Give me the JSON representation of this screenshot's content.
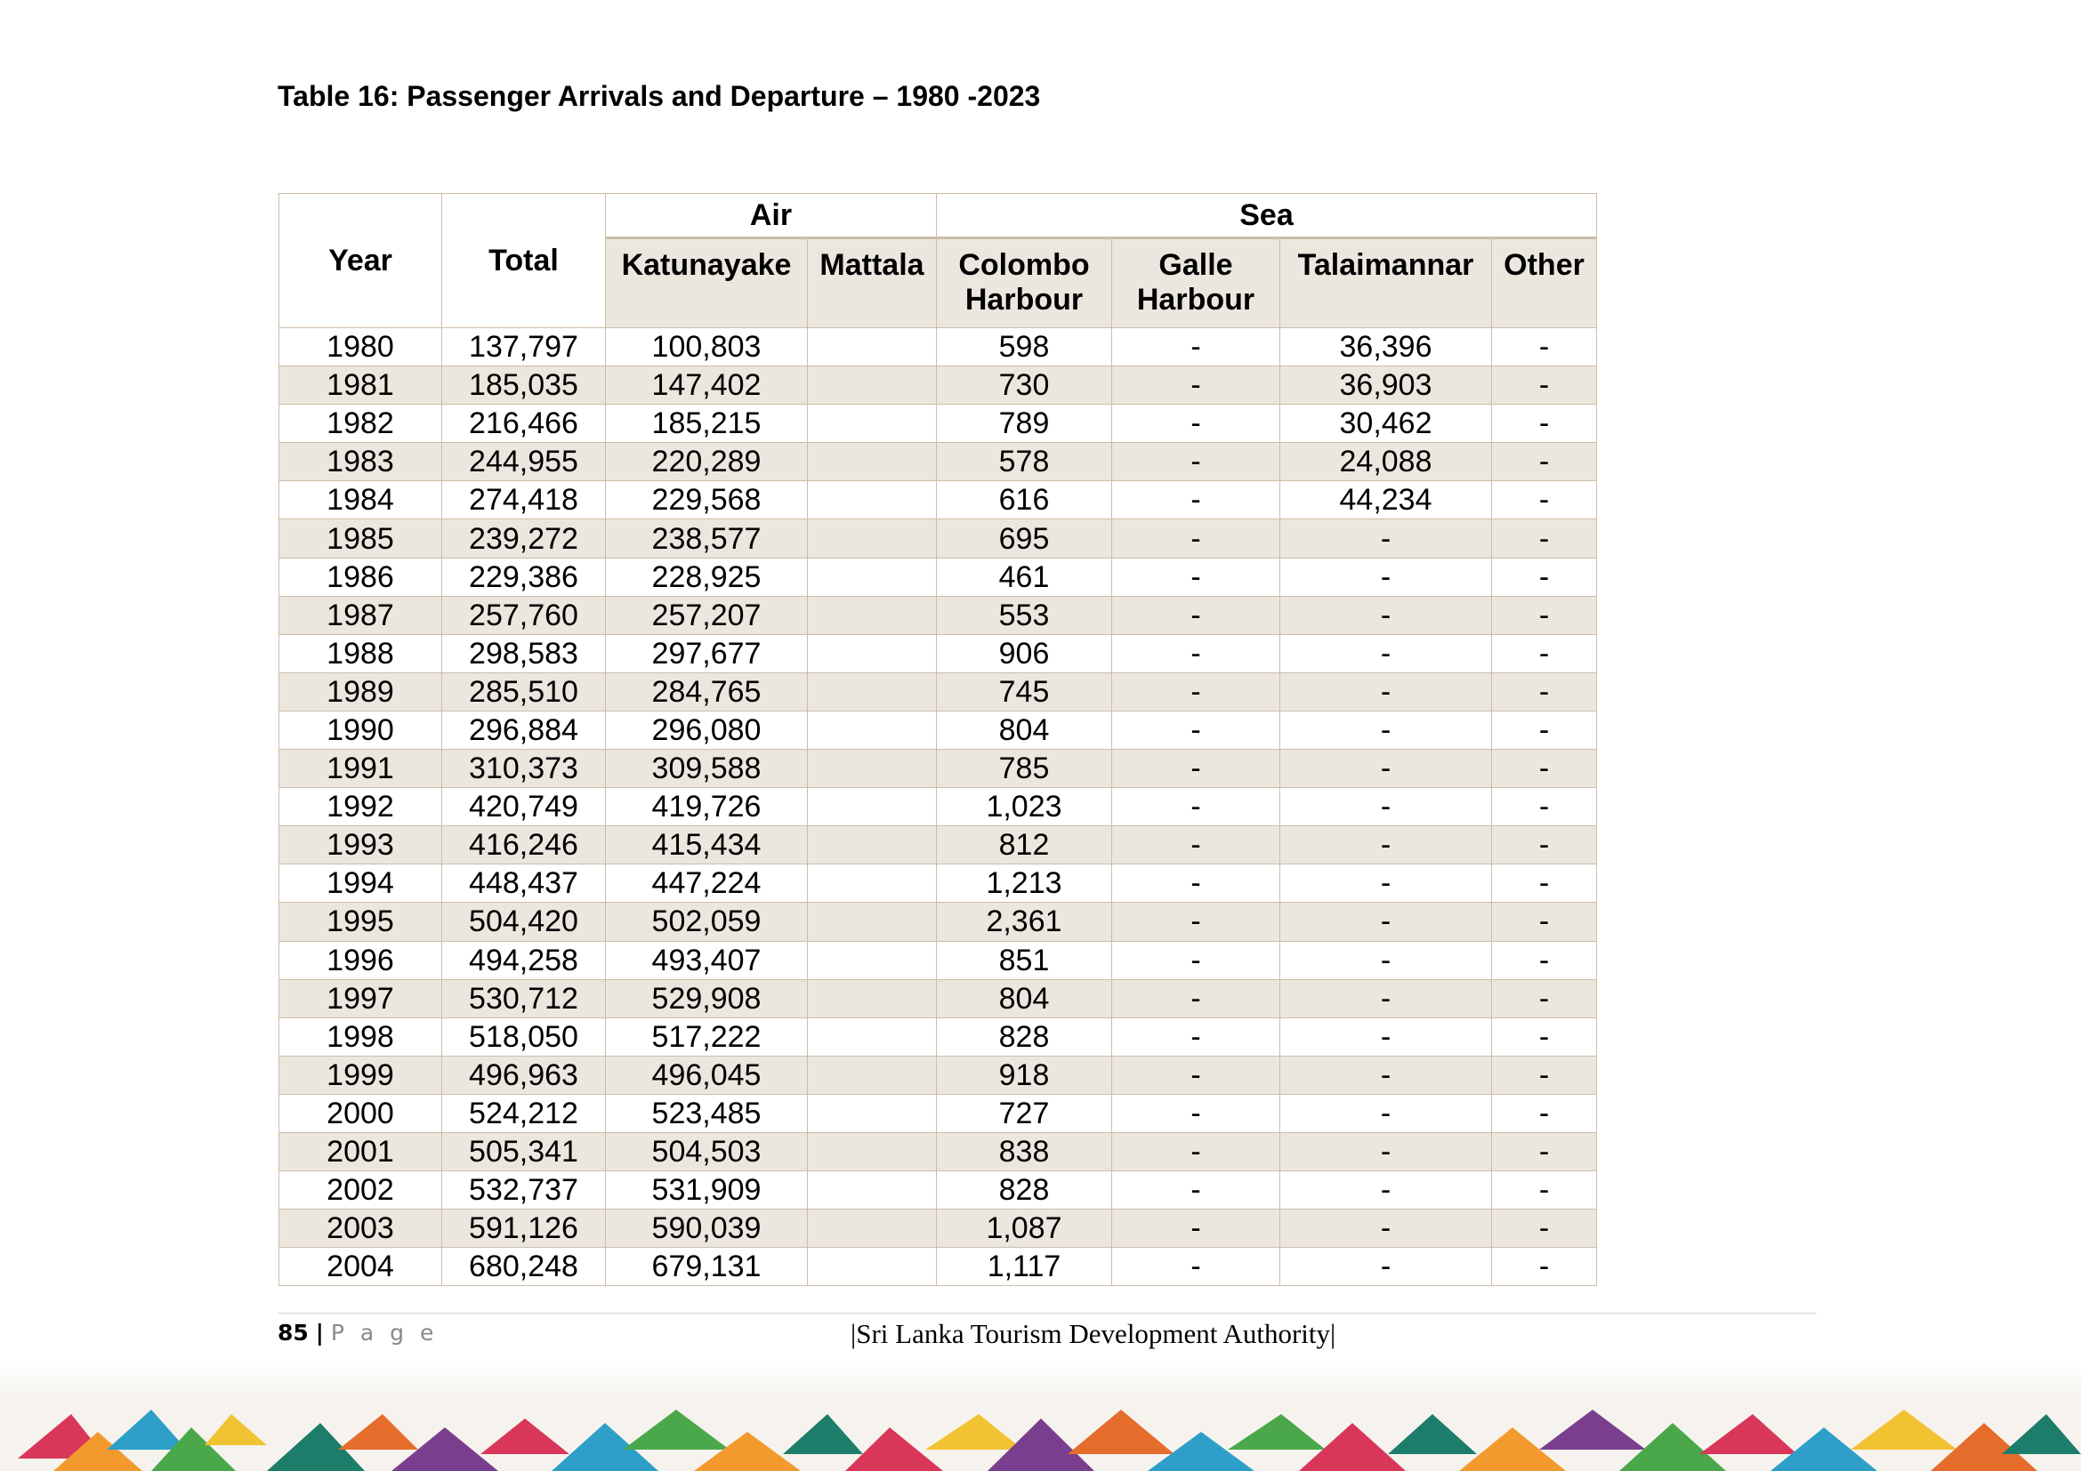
{
  "title": "Table 16: Passenger Arrivals and Departure – 1980 -2023",
  "table": {
    "headers": {
      "year": "Year",
      "total": "Total",
      "air": "Air",
      "sea": "Sea",
      "katunayake": "Katunayake",
      "mattala": "Mattala",
      "colombo_line1": "Colombo",
      "colombo_line2": "Harbour",
      "galle_line1": "Galle",
      "galle_line2": "Harbour",
      "talaimannar": "Talaimannar",
      "other": "Other"
    },
    "rows": [
      [
        "1980",
        "137,797",
        "100,803",
        "",
        "598",
        "-",
        "36,396",
        "-"
      ],
      [
        "1981",
        "185,035",
        "147,402",
        "",
        "730",
        "-",
        "36,903",
        "-"
      ],
      [
        "1982",
        "216,466",
        "185,215",
        "",
        "789",
        "-",
        "30,462",
        "-"
      ],
      [
        "1983",
        "244,955",
        "220,289",
        "",
        "578",
        "-",
        "24,088",
        "-"
      ],
      [
        "1984",
        "274,418",
        "229,568",
        "",
        "616",
        "-",
        "44,234",
        "-"
      ],
      [
        "1985",
        "239,272",
        "238,577",
        "",
        "695",
        "-",
        "-",
        "-"
      ],
      [
        "1986",
        "229,386",
        "228,925",
        "",
        "461",
        "-",
        "-",
        "-"
      ],
      [
        "1987",
        "257,760",
        "257,207",
        "",
        "553",
        "-",
        "-",
        "-"
      ],
      [
        "1988",
        "298,583",
        "297,677",
        "",
        "906",
        "-",
        "-",
        "-"
      ],
      [
        "1989",
        "285,510",
        "284,765",
        "",
        "745",
        "-",
        "-",
        "-"
      ],
      [
        "1990",
        "296,884",
        "296,080",
        "",
        "804",
        "-",
        "-",
        "-"
      ],
      [
        "1991",
        "310,373",
        "309,588",
        "",
        "785",
        "-",
        "-",
        "-"
      ],
      [
        "1992",
        "420,749",
        "419,726",
        "",
        "1,023",
        "-",
        "-",
        "-"
      ],
      [
        "1993",
        "416,246",
        "415,434",
        "",
        "812",
        "-",
        "-",
        "-"
      ],
      [
        "1994",
        "448,437",
        "447,224",
        "",
        "1,213",
        "-",
        "-",
        "-"
      ],
      [
        "1995",
        "504,420",
        "502,059",
        "",
        "2,361",
        "-",
        "-",
        "-"
      ],
      [
        "1996",
        "494,258",
        "493,407",
        "",
        "851",
        "-",
        "-",
        "-"
      ],
      [
        "1997",
        "530,712",
        "529,908",
        "",
        "804",
        "-",
        "-",
        "-"
      ],
      [
        "1998",
        "518,050",
        "517,222",
        "",
        "828",
        "-",
        "-",
        "-"
      ],
      [
        "1999",
        "496,963",
        "496,045",
        "",
        "918",
        "-",
        "-",
        "-"
      ],
      [
        "2000",
        "524,212",
        "523,485",
        "",
        "727",
        "-",
        "-",
        "-"
      ],
      [
        "2001",
        "505,341",
        "504,503",
        "",
        "838",
        "-",
        "-",
        "-"
      ],
      [
        "2002",
        "532,737",
        "531,909",
        "",
        "828",
        "-",
        "-",
        "-"
      ],
      [
        "2003",
        "591,126",
        "590,039",
        "",
        "1,087",
        "-",
        "-",
        "-"
      ],
      [
        "2004",
        "680,248",
        "679,131",
        "",
        "1,117",
        "-",
        "-",
        "-"
      ]
    ]
  },
  "footer": {
    "page_number": "85",
    "separator": "|",
    "page_label": "P a g e",
    "organization": "|Sri Lanka Tourism Development Authority|"
  },
  "colors": {
    "row_shade": "#ebe7df",
    "border": "#cdbda7"
  }
}
